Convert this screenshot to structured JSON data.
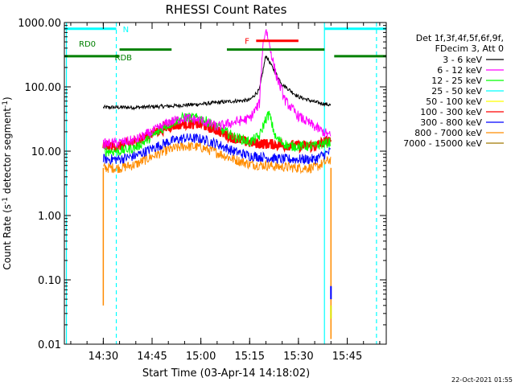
{
  "chart_data": {
    "type": "line",
    "title": "RHESSI Count Rates",
    "xlabel": "Start Time (03-Apr-14 14:18:02)",
    "ylabel_main": "Count Rate (s",
    "ylabel_sup1": "-1",
    "ylabel_mid": " detector segment",
    "ylabel_sup2": "-1",
    "ylabel_end": ")",
    "y_scale": "log",
    "ylim": [
      0.01,
      1000
    ],
    "xlim": [
      "14:18:02",
      "15:57:00"
    ],
    "y_ticks": [
      {
        "value": 0.01,
        "label": "0.01"
      },
      {
        "value": 0.1,
        "label": "0.10"
      },
      {
        "value": 1,
        "label": "1.00"
      },
      {
        "value": 10,
        "label": "10.00"
      },
      {
        "value": 100,
        "label": "100.00"
      },
      {
        "value": 1000,
        "label": "1000.00"
      }
    ],
    "x_ticks": [
      {
        "time": "14:30",
        "label": "14:30"
      },
      {
        "time": "14:45",
        "label": "14:45"
      },
      {
        "time": "15:00",
        "label": "15:00"
      },
      {
        "time": "15:15",
        "label": "15:15"
      },
      {
        "time": "15:30",
        "label": "15:30"
      },
      {
        "time": "15:45",
        "label": "15:45"
      }
    ],
    "legend_header_1": "Det 1f,3f,4f,5f,6f,9f,",
    "legend_header_2": "FDecim 3, Att 0",
    "legend_placement": "right",
    "series": [
      {
        "name": "3 - 6 keV",
        "color": "#000000",
        "x": [
          "14:30",
          "14:40",
          "14:50",
          "15:00",
          "15:10",
          "15:15",
          "15:18",
          "15:20",
          "15:22",
          "15:25",
          "15:30",
          "15:35",
          "15:40"
        ],
        "y": [
          48,
          48,
          50,
          54,
          60,
          62,
          90,
          310,
          200,
          110,
          70,
          58,
          52
        ]
      },
      {
        "name": "6 - 12 keV",
        "color": "#ff00ff",
        "x": [
          "14:30",
          "14:35",
          "14:40",
          "14:45",
          "14:50",
          "14:55",
          "15:00",
          "15:05",
          "15:10",
          "15:15",
          "15:18",
          "15:19",
          "15:20",
          "15:21",
          "15:23",
          "15:26",
          "15:30",
          "15:35",
          "15:40"
        ],
        "y": [
          13,
          13.5,
          15,
          20,
          28,
          33,
          30,
          24,
          28,
          32,
          55,
          420,
          800,
          480,
          160,
          60,
          35,
          24,
          17
        ]
      },
      {
        "name": "12 - 25 keV",
        "color": "#00ff00",
        "x": [
          "14:30",
          "14:35",
          "14:40",
          "14:45",
          "14:50",
          "14:55",
          "15:00",
          "15:05",
          "15:10",
          "15:15",
          "15:18",
          "15:20",
          "15:21",
          "15:23",
          "15:27",
          "15:30",
          "15:35",
          "15:40"
        ],
        "y": [
          10,
          10,
          11.5,
          17,
          26,
          34,
          32,
          24,
          17,
          14,
          17,
          32,
          38,
          16,
          12,
          12,
          12,
          14
        ]
      },
      {
        "name": "25 - 50 keV",
        "color": "#00ffff",
        "x": [],
        "y": []
      },
      {
        "name": "50 - 100 keV",
        "color": "#ffff00",
        "x": [],
        "y": []
      },
      {
        "name": "100 - 300 keV",
        "color": "#ff0000",
        "x": [
          "14:30",
          "14:35",
          "14:40",
          "14:45",
          "14:50",
          "14:55",
          "15:00",
          "15:05",
          "15:10",
          "15:15",
          "15:20",
          "15:25",
          "15:30",
          "15:35",
          "15:40"
        ],
        "y": [
          12,
          12,
          14,
          19,
          24,
          27,
          26,
          21,
          16,
          13.5,
          13,
          12.5,
          12,
          12,
          15
        ]
      },
      {
        "name": "300 - 800 keV",
        "color": "#0000ff",
        "x": [
          "14:30",
          "14:35",
          "14:40",
          "14:45",
          "14:50",
          "14:55",
          "15:00",
          "15:05",
          "15:10",
          "15:15",
          "15:20",
          "15:25",
          "15:30",
          "15:35",
          "15:40"
        ],
        "y": [
          7.5,
          7.5,
          8.5,
          11,
          14,
          16,
          15.5,
          13,
          10,
          8.5,
          8,
          7.5,
          7.5,
          7.5,
          10
        ]
      },
      {
        "name": "800 - 7000 keV",
        "color": "#ff8c00",
        "x": [
          "14:30",
          "14:35",
          "14:40",
          "14:45",
          "14:50",
          "14:55",
          "15:00",
          "15:05",
          "15:10",
          "15:15",
          "15:20",
          "15:25",
          "15:30",
          "15:35",
          "15:40"
        ],
        "y": [
          5.5,
          5.5,
          6.2,
          8.3,
          10.5,
          12,
          11.5,
          9.5,
          7.5,
          6.3,
          6,
          5.7,
          5.5,
          5.5,
          7.5
        ]
      },
      {
        "name": "7000 - 15000 keV",
        "color": "#a07800",
        "x": [],
        "y": []
      }
    ],
    "flags": [
      {
        "label": "N",
        "color": "#00ffff",
        "ranges": [
          [
            "14:18:02",
            "14:34"
          ],
          [
            "15:38",
            "15:57"
          ]
        ]
      },
      {
        "label": "RD0",
        "color": "#008000",
        "ranges": [
          [
            "14:18:02",
            "14:35"
          ],
          [
            "14:35",
            "14:51"
          ],
          [
            "15:08",
            "15:38"
          ],
          [
            "15:41",
            "15:57"
          ]
        ]
      },
      {
        "label": "RDB",
        "color": "#008000",
        "ranges": []
      },
      {
        "label": "F",
        "color": "#ff0000",
        "ranges": [
          [
            "15:17",
            "15:30"
          ]
        ]
      }
    ],
    "footer_date": "22-Oct-2021 01:55"
  }
}
